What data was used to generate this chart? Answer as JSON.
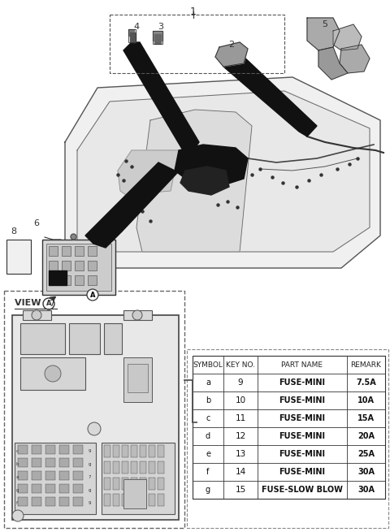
{
  "bg_color": "#ffffff",
  "table_headers": [
    "SYMBOL",
    "KEY NO.",
    "PART NAME",
    "REMARK"
  ],
  "table_rows": [
    [
      "a",
      "9",
      "FUSE-MINI",
      "7.5A"
    ],
    [
      "b",
      "10",
      "FUSE-MINI",
      "10A"
    ],
    [
      "c",
      "11",
      "FUSE-MINI",
      "15A"
    ],
    [
      "d",
      "12",
      "FUSE-MINI",
      "20A"
    ],
    [
      "e",
      "13",
      "FUSE-MINI",
      "25A"
    ],
    [
      "f",
      "14",
      "FUSE-MINI",
      "30A"
    ],
    [
      "g",
      "15",
      "FUSE-SLOW BLOW",
      "30A"
    ]
  ],
  "line_color": "#333333",
  "light_gray": "#cccccc",
  "mid_gray": "#aaaaaa",
  "dark_color": "#111111"
}
